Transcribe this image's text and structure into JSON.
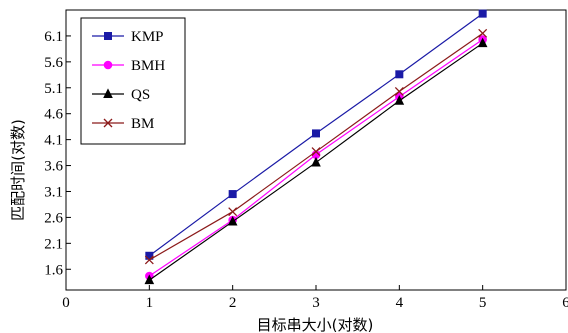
{
  "chart_data": {
    "type": "line",
    "xlabel": "目标串大小(对数)",
    "ylabel": "匹配时间(对数)",
    "xlim": [
      0,
      6
    ],
    "ylim": [
      1.2,
      6.6
    ],
    "x_ticks": [
      0,
      1,
      2,
      3,
      4,
      5,
      6
    ],
    "y_ticks": [
      1.6,
      2.1,
      2.6,
      3.1,
      3.6,
      4.1,
      4.6,
      5.1,
      5.6,
      6.1
    ],
    "legend_position": "top-left",
    "grid": false,
    "x": [
      1,
      2,
      3,
      4,
      5
    ],
    "series": [
      {
        "name": "KMP",
        "values": [
          1.86,
          3.05,
          4.22,
          5.36,
          6.53
        ],
        "color": "#1a1aa6",
        "marker": "square"
      },
      {
        "name": "BMH",
        "values": [
          1.47,
          2.55,
          3.81,
          4.93,
          6.03
        ],
        "color": "#ff00ff",
        "marker": "circle"
      },
      {
        "name": "QS",
        "values": [
          1.39,
          2.52,
          3.66,
          4.85,
          5.96
        ],
        "color": "#000000",
        "marker": "triangle"
      },
      {
        "name": "BM",
        "values": [
          1.78,
          2.71,
          3.87,
          5.03,
          6.15
        ],
        "color": "#8b1a1a",
        "marker": "x"
      }
    ]
  }
}
